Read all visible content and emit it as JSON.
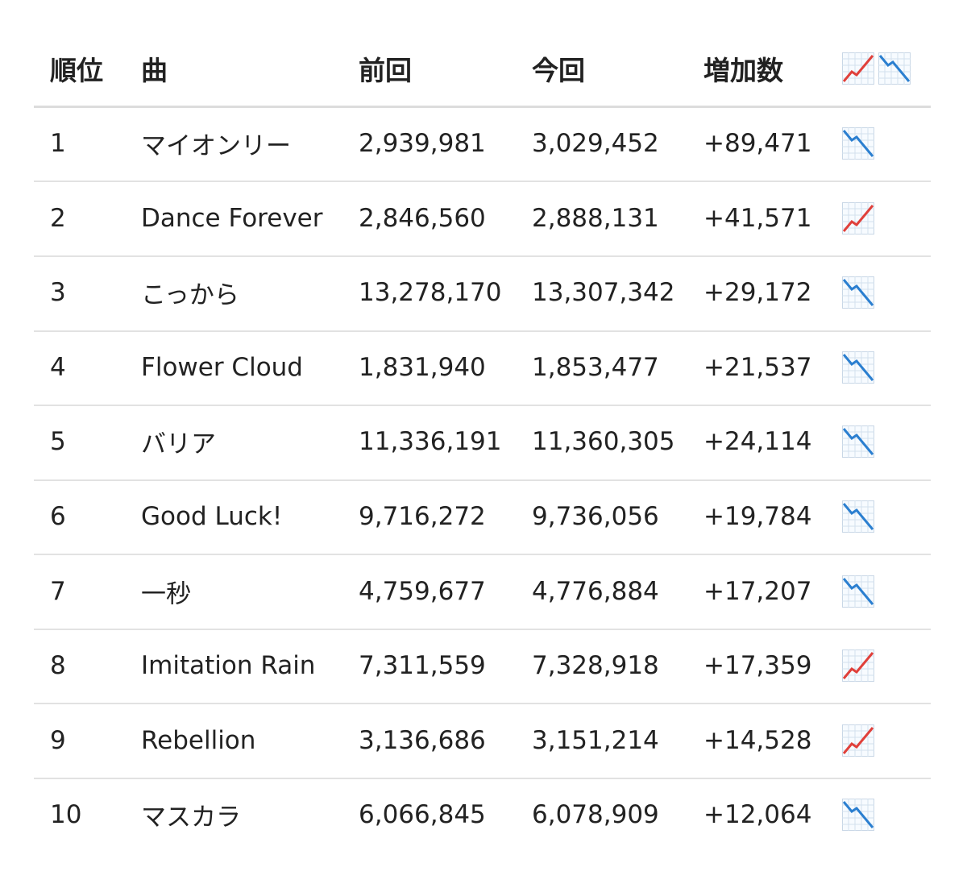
{
  "table": {
    "header": [
      "順位",
      "曲",
      "前回",
      "今回",
      "増加数"
    ],
    "rows": [
      {
        "rank": "1",
        "title": "マイオンリー",
        "previous": "2,939,981",
        "current": "3,029,452",
        "increase": "+89,471",
        "trend": "down"
      },
      {
        "rank": "2",
        "title": "Dance Forever",
        "previous": "2,846,560",
        "current": "2,888,131",
        "increase": "+41,571",
        "trend": "up"
      },
      {
        "rank": "3",
        "title": "こっから",
        "previous": "13,278,170",
        "current": "13,307,342",
        "increase": "+29,172",
        "trend": "down"
      },
      {
        "rank": "4",
        "title": "Flower Cloud",
        "previous": "1,831,940",
        "current": "1,853,477",
        "increase": "+21,537",
        "trend": "down"
      },
      {
        "rank": "5",
        "title": "バリア",
        "previous": "11,336,191",
        "current": "11,360,305",
        "increase": "+24,114",
        "trend": "down"
      },
      {
        "rank": "6",
        "title": "Good Luck!",
        "previous": "9,716,272",
        "current": "9,736,056",
        "increase": "+19,784",
        "trend": "down"
      },
      {
        "rank": "7",
        "title": "一秒",
        "previous": "4,759,677",
        "current": "4,776,884",
        "increase": "+17,207",
        "trend": "down"
      },
      {
        "rank": "8",
        "title": "Imitation Rain",
        "previous": "7,311,559",
        "current": "7,328,918",
        "increase": "+17,359",
        "trend": "up"
      },
      {
        "rank": "9",
        "title": "Rebellion",
        "previous": "3,136,686",
        "current": "3,151,214",
        "increase": "+14,528",
        "trend": "up"
      },
      {
        "rank": "10",
        "title": "マスカラ",
        "previous": "6,066,845",
        "current": "6,078,909",
        "increase": "+12,064",
        "trend": "down"
      }
    ]
  }
}
